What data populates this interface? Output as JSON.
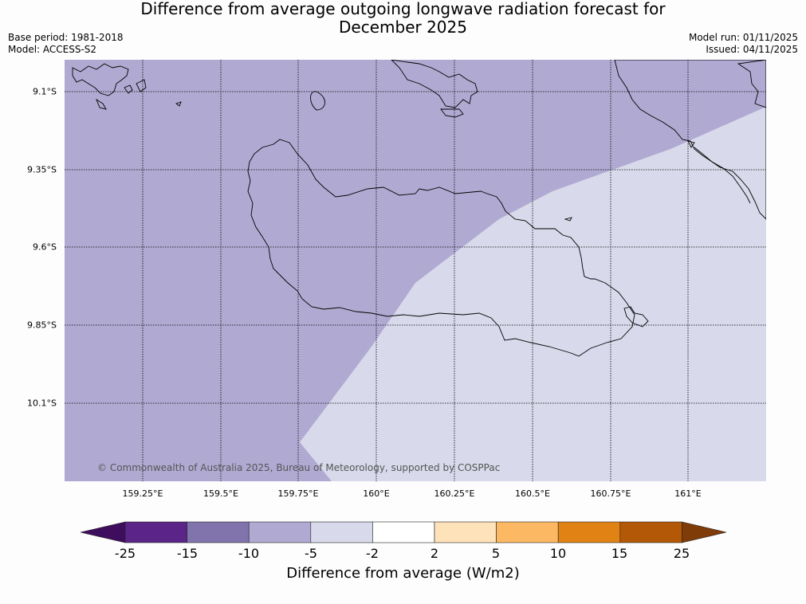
{
  "title": {
    "line1": "Difference from average outgoing longwave radiation forecast for",
    "line2": "December 2025"
  },
  "meta": {
    "base_period": "Base period: 1981-2018",
    "model": "Model: ACCESS-S2",
    "model_run": "Model run: 01/11/2025",
    "issued": "Issued: 04/11/2025"
  },
  "map": {
    "lat_labels": [
      "9.1°S",
      "9.35°S",
      "9.6°S",
      "9.85°S",
      "10.1°S"
    ],
    "lon_labels": [
      "159.25°E",
      "159.5°E",
      "159.75°E",
      "160°E",
      "160.25°E",
      "160.5°E",
      "160.75°E",
      "161°E"
    ],
    "regions": [
      {
        "name": "-10 to -5",
        "color": "#b0aad2"
      },
      {
        "name": "-5 to -2",
        "color": "#d8d9ea"
      }
    ],
    "copyright": "© Commonwealth of Australia 2025, Bureau of Meteorology, supported by COSPPac"
  },
  "colorbar": {
    "label": "Difference from average (W/m2)",
    "ticks": [
      "-25",
      "-15",
      "-10",
      "-5",
      "-2",
      "2",
      "5",
      "10",
      "15",
      "25"
    ],
    "colors": [
      "#3f0d5e",
      "#5a2489",
      "#8174ad",
      "#b0aad2",
      "#d8d9ea",
      "#ffffff",
      "#fee2b9",
      "#fdb863",
      "#e08214",
      "#b35806",
      "#7f3b08"
    ]
  }
}
